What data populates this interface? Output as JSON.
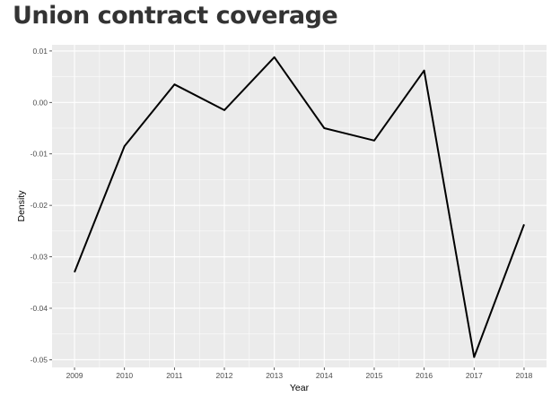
{
  "title": "Union contract coverage",
  "chart_data": {
    "type": "line",
    "title": "Union contract coverage",
    "xlabel": "Year",
    "ylabel": "Density",
    "x": [
      2009,
      2010,
      2011,
      2012,
      2013,
      2014,
      2015,
      2016,
      2017,
      2018
    ],
    "series": [
      {
        "values": [
          -0.033,
          -0.0085,
          0.0035,
          -0.0015,
          0.0088,
          -0.005,
          -0.0074,
          0.0062,
          -0.0495,
          -0.0237
        ]
      }
    ],
    "xlim": [
      2008.55,
      2018.45
    ],
    "ylim": [
      -0.0515,
      0.0112
    ],
    "yticks": [
      0.01,
      0.0,
      -0.01,
      -0.02,
      -0.03,
      -0.04,
      -0.05
    ],
    "ytick_labels": [
      "0.01",
      "0.00",
      "-0.01",
      "-0.02",
      "-0.03",
      "-0.04",
      "-0.05"
    ],
    "xtick_labels": [
      "2009",
      "2010",
      "2011",
      "2012",
      "2013",
      "2014",
      "2015",
      "2016",
      "2017",
      "2018"
    ],
    "grid": true,
    "colors": {
      "panel": "#ebebeb",
      "grid": "#ffffff",
      "line": "#000000"
    }
  }
}
